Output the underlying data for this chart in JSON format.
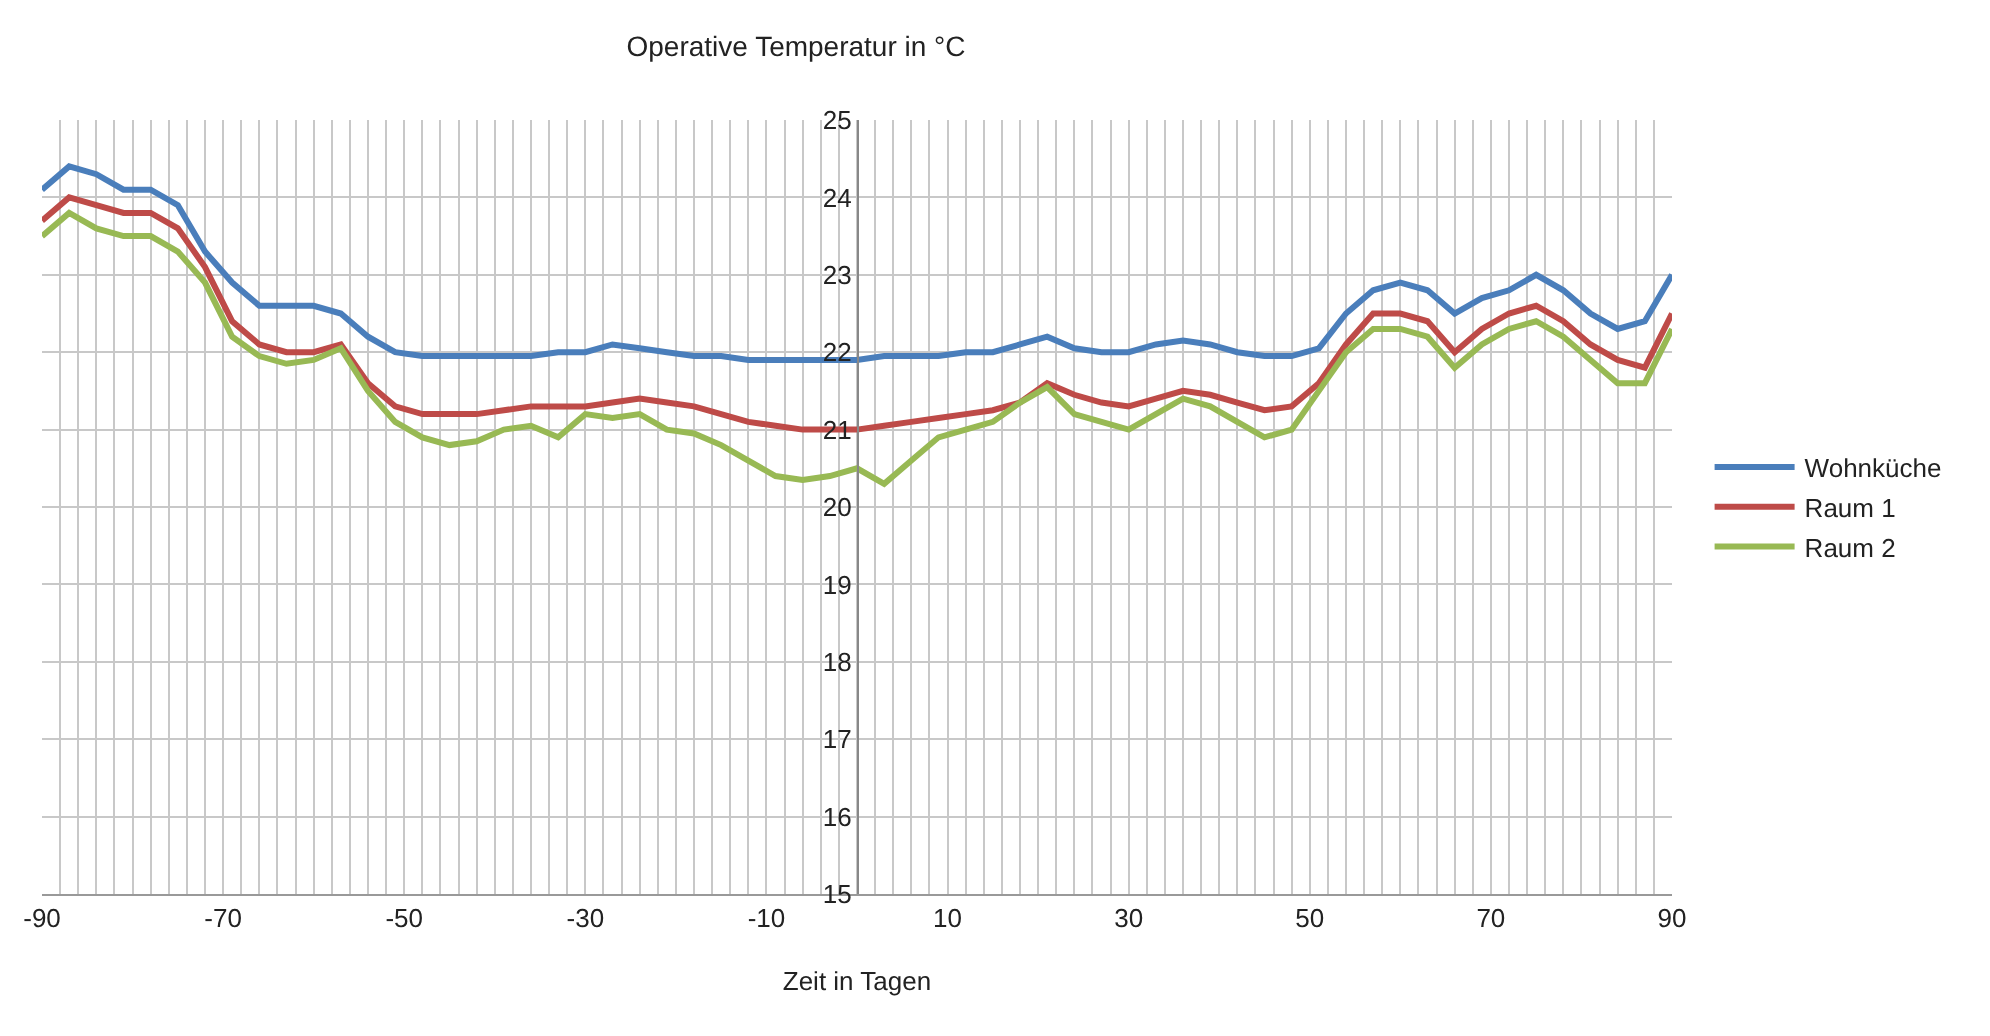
{
  "chart_data": {
    "type": "line",
    "title": "Operative Temperatur in °C",
    "xlabel": "Zeit in Tagen",
    "x": [
      -90,
      -87,
      -84,
      -81,
      -78,
      -75,
      -72,
      -69,
      -66,
      -63,
      -60,
      -57,
      -54,
      -51,
      -48,
      -45,
      -42,
      -39,
      -36,
      -33,
      -30,
      -27,
      -24,
      -21,
      -18,
      -15,
      -12,
      -9,
      -6,
      -3,
      0,
      3,
      6,
      9,
      12,
      15,
      18,
      21,
      24,
      27,
      30,
      33,
      36,
      39,
      42,
      45,
      48,
      51,
      54,
      57,
      60,
      63,
      66,
      69,
      72,
      75,
      78,
      81,
      84,
      87,
      90
    ],
    "series": [
      {
        "name": "Wohnküche",
        "color": "#4a7ebb",
        "values": [
          24.1,
          24.4,
          24.3,
          24.1,
          24.1,
          23.9,
          23.3,
          22.9,
          22.6,
          22.6,
          22.6,
          22.5,
          22.2,
          22.0,
          21.95,
          21.95,
          21.95,
          21.95,
          21.95,
          22.0,
          22.0,
          22.1,
          22.05,
          22.0,
          21.95,
          21.95,
          21.9,
          21.9,
          21.9,
          21.9,
          21.9,
          21.95,
          21.95,
          21.95,
          22.0,
          22.0,
          22.1,
          22.2,
          22.05,
          22.0,
          22.0,
          22.1,
          22.15,
          22.1,
          22.0,
          21.95,
          21.95,
          22.05,
          22.5,
          22.8,
          22.9,
          22.8,
          22.5,
          22.7,
          22.8,
          23.0,
          22.8,
          22.5,
          22.3,
          22.4,
          23.0
        ]
      },
      {
        "name": "Raum 1",
        "color": "#be4b48",
        "values": [
          23.7,
          24.0,
          23.9,
          23.8,
          23.8,
          23.6,
          23.1,
          22.4,
          22.1,
          22.0,
          22.0,
          22.1,
          21.6,
          21.3,
          21.2,
          21.2,
          21.2,
          21.25,
          21.3,
          21.3,
          21.3,
          21.35,
          21.4,
          21.35,
          21.3,
          21.2,
          21.1,
          21.05,
          21.0,
          21.0,
          21.0,
          21.05,
          21.1,
          21.15,
          21.2,
          21.25,
          21.35,
          21.6,
          21.45,
          21.35,
          21.3,
          21.4,
          21.5,
          21.45,
          21.35,
          21.25,
          21.3,
          21.6,
          22.1,
          22.5,
          22.5,
          22.4,
          22.0,
          22.3,
          22.5,
          22.6,
          22.4,
          22.1,
          21.9,
          21.8,
          22.5
        ]
      },
      {
        "name": "Raum 2",
        "color": "#98b954",
        "values": [
          23.5,
          23.8,
          23.6,
          23.5,
          23.5,
          23.3,
          22.9,
          22.2,
          21.95,
          21.85,
          21.9,
          22.05,
          21.5,
          21.1,
          20.9,
          20.8,
          20.85,
          21.0,
          21.05,
          20.9,
          21.2,
          21.15,
          21.2,
          21.0,
          20.95,
          20.8,
          20.6,
          20.4,
          20.35,
          20.4,
          20.5,
          20.3,
          20.6,
          20.9,
          21.0,
          21.1,
          21.35,
          21.55,
          21.2,
          21.1,
          21.0,
          21.2,
          21.4,
          21.3,
          21.1,
          20.9,
          21.0,
          21.5,
          22.0,
          22.3,
          22.3,
          22.2,
          21.8,
          22.1,
          22.3,
          22.4,
          22.2,
          21.9,
          21.6,
          21.6,
          22.3
        ]
      }
    ],
    "xlim": [
      -90,
      90
    ],
    "ylim": [
      15,
      25
    ],
    "xticks": [
      -90,
      {
        "value": -88,
        "label": null
      },
      {
        "value": -86,
        "label": null
      },
      {
        "value": -84,
        "label": null
      },
      {
        "value": -82,
        "label": null
      },
      {
        "value": -80,
        "label": null
      },
      {
        "value": -78,
        "label": null
      },
      {
        "value": -76,
        "label": null
      },
      {
        "value": -74,
        "label": null
      },
      {
        "value": -72,
        "label": null
      },
      -70,
      {
        "value": -68,
        "label": null
      },
      {
        "value": -66,
        "label": null
      },
      {
        "value": -64,
        "label": null
      },
      {
        "value": -62,
        "label": null
      },
      {
        "value": -60,
        "label": null
      },
      {
        "value": -58,
        "label": null
      },
      {
        "value": -56,
        "label": null
      },
      {
        "value": -54,
        "label": null
      },
      {
        "value": -52,
        "label": null
      },
      -50,
      {
        "value": -48,
        "label": null
      },
      {
        "value": -46,
        "label": null
      },
      {
        "value": -44,
        "label": null
      },
      {
        "value": -42,
        "label": null
      },
      {
        "value": -40,
        "label": null
      },
      {
        "value": -38,
        "label": null
      },
      {
        "value": -36,
        "label": null
      },
      {
        "value": -34,
        "label": null
      },
      {
        "value": -32,
        "label": null
      },
      -30,
      {
        "value": -28,
        "label": null
      },
      {
        "value": -26,
        "label": null
      },
      {
        "value": -24,
        "label": null
      },
      {
        "value": -22,
        "label": null
      },
      {
        "value": -20,
        "label": null
      },
      {
        "value": -18,
        "label": null
      },
      {
        "value": -16,
        "label": null
      },
      {
        "value": -14,
        "label": null
      },
      {
        "value": -12,
        "label": null
      },
      -10,
      {
        "value": -8,
        "label": null
      },
      {
        "value": -6,
        "label": null
      },
      {
        "value": -4,
        "label": null
      },
      {
        "value": -2,
        "label": null
      },
      {
        "value": 0,
        "label": null
      },
      {
        "value": 2,
        "label": null
      },
      {
        "value": 4,
        "label": null
      },
      {
        "value": 6,
        "label": null
      },
      {
        "value": 8,
        "label": null
      },
      10,
      {
        "value": 12,
        "label": null
      },
      {
        "value": 14,
        "label": null
      },
      {
        "value": 16,
        "label": null
      },
      {
        "value": 18,
        "label": null
      },
      {
        "value": 20,
        "label": null
      },
      {
        "value": 22,
        "label": null
      },
      {
        "value": 24,
        "label": null
      },
      {
        "value": 26,
        "label": null
      },
      {
        "value": 28,
        "label": null
      },
      30,
      {
        "value": 32,
        "label": null
      },
      {
        "value": 34,
        "label": null
      },
      {
        "value": 36,
        "label": null
      },
      {
        "value": 38,
        "label": null
      },
      {
        "value": 40,
        "label": null
      },
      {
        "value": 42,
        "label": null
      },
      {
        "value": 44,
        "label": null
      },
      {
        "value": 46,
        "label": null
      },
      {
        "value": 48,
        "label": null
      },
      50,
      {
        "value": 52,
        "label": null
      },
      {
        "value": 54,
        "label": null
      },
      {
        "value": 56,
        "label": null
      },
      {
        "value": 58,
        "label": null
      },
      {
        "value": 60,
        "label": null
      },
      {
        "value": 62,
        "label": null
      },
      {
        "value": 64,
        "label": null
      },
      {
        "value": 66,
        "label": null
      },
      {
        "value": 68,
        "label": null
      },
      70,
      {
        "value": 72,
        "label": null
      },
      {
        "value": 74,
        "label": null
      },
      {
        "value": 76,
        "label": null
      },
      {
        "value": 78,
        "label": null
      },
      {
        "value": 80,
        "label": null
      },
      {
        "value": 82,
        "label": null
      },
      {
        "value": 84,
        "label": null
      },
      {
        "value": 86,
        "label": null
      },
      {
        "value": 88,
        "label": null
      },
      90
    ],
    "yticks": [
      15,
      16,
      17,
      18,
      19,
      20,
      21,
      22,
      23,
      24,
      25
    ],
    "grid": true,
    "legend": "right",
    "marker": "none",
    "line_style": "solid"
  }
}
